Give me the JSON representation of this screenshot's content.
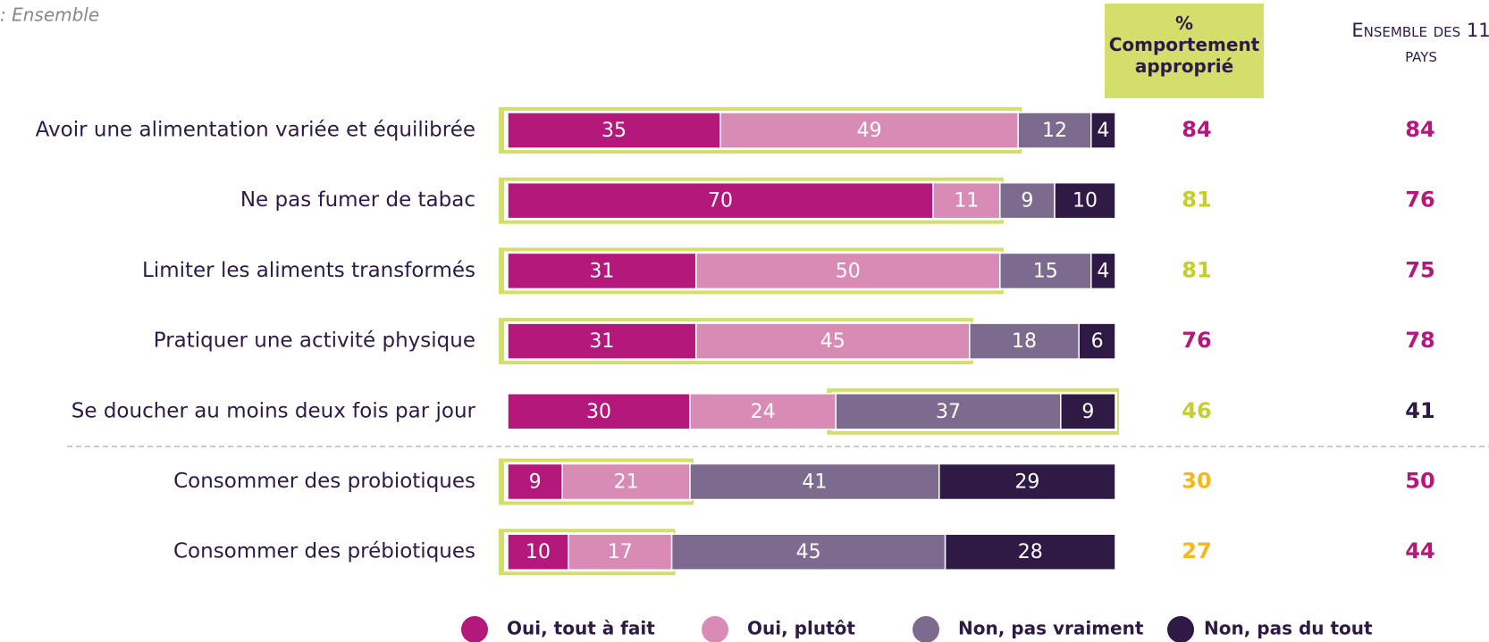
{
  "chart_data": {
    "type": "stacked-bar-horizontal",
    "subtitle": ": Ensemble",
    "categories": [
      "Avoir une alimentation variée et équilibrée",
      "Ne pas fumer de tabac",
      "Limiter les aliments transformés",
      "Pratiquer une activité physique",
      "Se doucher au moins deux fois par jour",
      "Consommer des probiotiques",
      "Consommer des prébiotiques"
    ],
    "series": [
      {
        "name": "Oui, tout à fait",
        "color": "#b5187b",
        "values": [
          35,
          70,
          31,
          31,
          30,
          9,
          10
        ]
      },
      {
        "name": "Oui, plutôt",
        "color": "#d88bb5",
        "values": [
          49,
          11,
          50,
          45,
          24,
          21,
          17
        ]
      },
      {
        "name": "Non, pas vraiment",
        "color": "#7d6b8f",
        "values": [
          12,
          9,
          15,
          18,
          37,
          41,
          45
        ]
      },
      {
        "name": "Non, pas du tout",
        "color": "#2e1a45",
        "values": [
          4,
          10,
          4,
          6,
          9,
          29,
          28
        ]
      }
    ],
    "xlim": [
      0,
      100
    ],
    "highlight_color": "#d4df6b",
    "highlight_series": [
      [
        0,
        1
      ],
      [
        0,
        1
      ],
      [
        0,
        1
      ],
      [
        0,
        1
      ],
      [
        2,
        3
      ],
      [
        0,
        1
      ],
      [
        0,
        1
      ]
    ],
    "columns": [
      {
        "header": "%\nComportement approprié",
        "values": [
          84,
          81,
          81,
          76,
          46,
          30,
          27
        ],
        "colors": [
          "#b5187b",
          "#c5cf27",
          "#c5cf27",
          "#b5187b",
          "#c5cf27",
          "#f5b71a",
          "#f5b71a"
        ]
      },
      {
        "header": "Ensemble des 11 pays",
        "values": [
          84,
          76,
          75,
          78,
          41,
          50,
          44
        ],
        "colors": [
          "#b5187b",
          "#b5187b",
          "#b5187b",
          "#b5187b",
          "#2e1a45",
          "#b5187b",
          "#b5187b"
        ]
      }
    ]
  }
}
